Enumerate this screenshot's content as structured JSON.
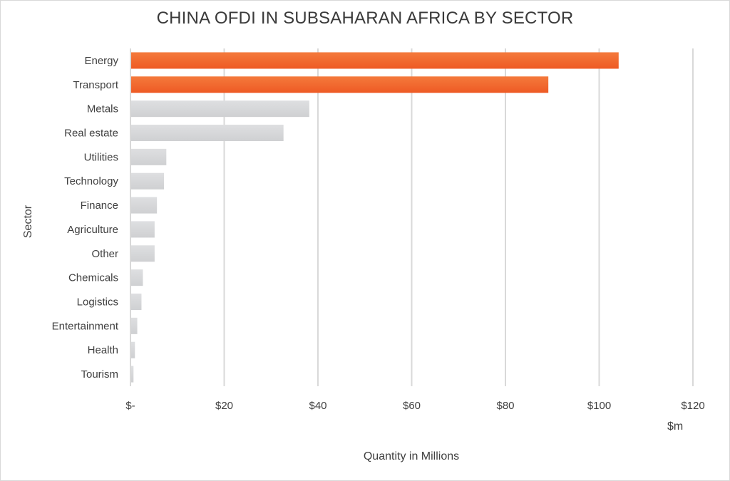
{
  "chart_data": {
    "type": "bar",
    "orientation": "horizontal",
    "title": "CHINA OFDI IN SUBSAHARAN AFRICA BY SECTOR",
    "xlabel": "Quantity in Millions",
    "ylabel": "Sector",
    "unit_label": "$m",
    "xlim": [
      0,
      120
    ],
    "x_ticks": [
      0,
      20,
      40,
      60,
      80,
      100,
      120
    ],
    "x_tick_labels": [
      "$-",
      "$20",
      "$40",
      "$60",
      "$80",
      "$100",
      "$120"
    ],
    "grid": true,
    "categories": [
      "Energy",
      "Transport",
      "Metals",
      "Real estate",
      "Utilities",
      "Technology",
      "Finance",
      "Agriculture",
      "Other",
      "Chemicals",
      "Logistics",
      "Entertainment",
      "Health",
      "Tourism"
    ],
    "values": [
      104,
      89,
      38,
      32.5,
      7.5,
      7,
      5.5,
      5,
      5,
      2.5,
      2.2,
      1.3,
      0.8,
      0.5
    ],
    "colors": {
      "highlight": "#ee5a24",
      "highlight_light": "#f47a3c",
      "muted": "#cfd0d2",
      "muted_light": "#dedfe1",
      "grid": "#d9d9d9"
    },
    "highlighted": [
      "Energy",
      "Transport"
    ]
  }
}
